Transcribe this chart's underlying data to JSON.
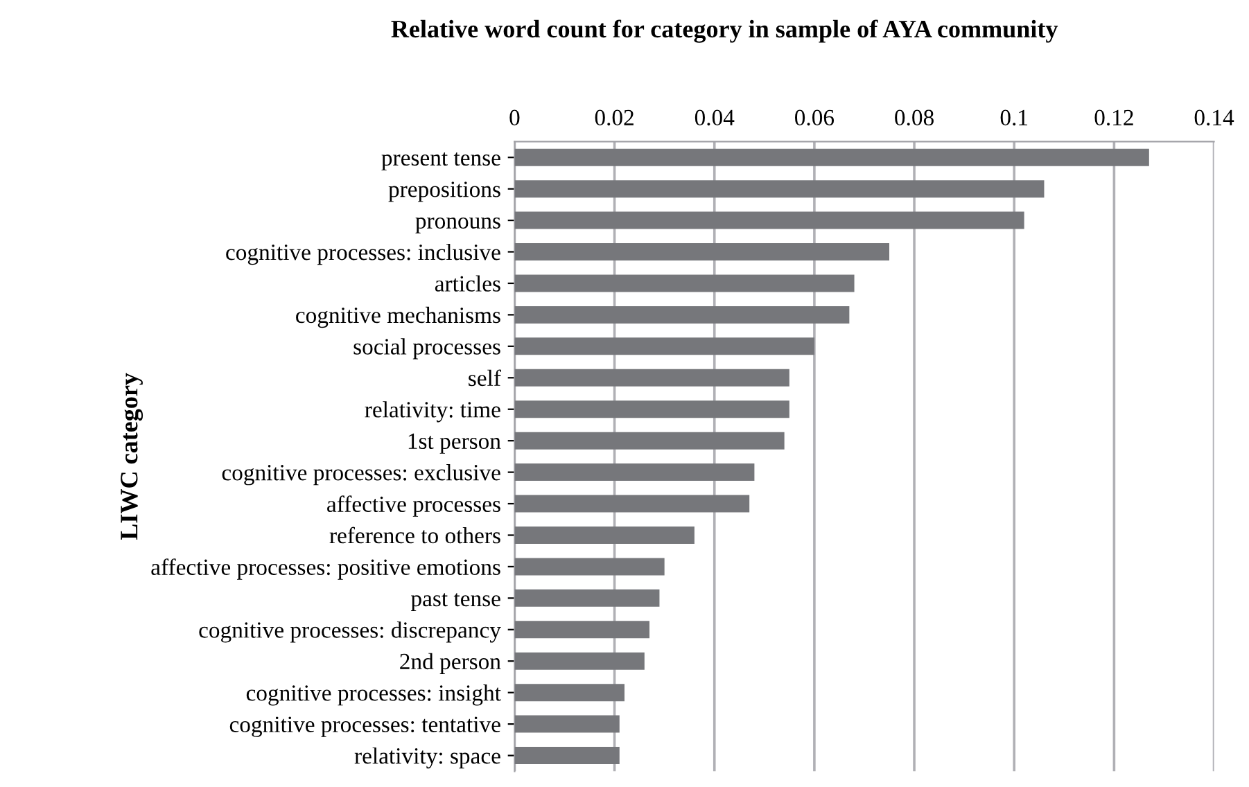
{
  "chart_data": {
    "type": "bar",
    "orientation": "horizontal",
    "title": "Relative word count for category in sample of AYA community",
    "ylabel": "LIWC category",
    "categories": [
      "present tense",
      "prepositions",
      "pronouns",
      "cognitive processes: inclusive",
      "articles",
      "cognitive mechanisms",
      "social processes",
      "self",
      "relativity: time",
      "1st person",
      "cognitive processes: exclusive",
      "affective processes",
      "reference to others",
      "affective processes: positive emotions",
      "past tense",
      "cognitive processes: discrepancy",
      "2nd person",
      "cognitive processes: insight",
      "cognitive processes: tentative",
      "relativity: space"
    ],
    "values": [
      0.127,
      0.106,
      0.102,
      0.075,
      0.068,
      0.067,
      0.06,
      0.055,
      0.055,
      0.054,
      0.048,
      0.047,
      0.036,
      0.03,
      0.029,
      0.027,
      0.026,
      0.022,
      0.021,
      0.021
    ],
    "color": "#76777b",
    "xlim": [
      0,
      0.14
    ],
    "xticks": [
      0,
      0.02,
      0.04,
      0.06,
      0.08,
      0.1,
      0.12,
      0.14
    ],
    "grid": "x",
    "legend": false
  }
}
